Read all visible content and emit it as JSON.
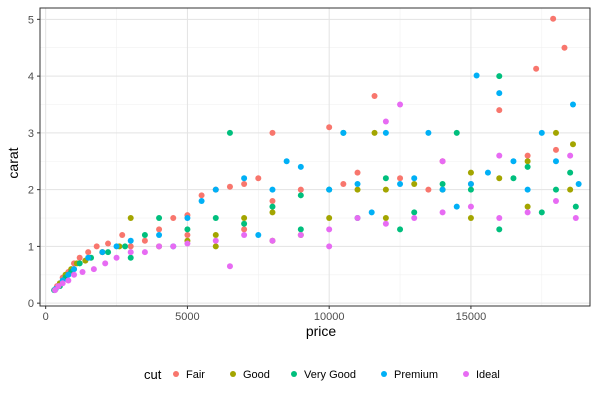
{
  "chart_data": {
    "type": "scatter",
    "title": "",
    "xlabel": "price",
    "ylabel": "carat",
    "xlim": [
      -200,
      19200
    ],
    "ylim": [
      -0.05,
      5.2
    ],
    "x_ticks": [
      0,
      5000,
      10000,
      15000
    ],
    "x_tick_labels": [
      "0",
      "5000",
      "10000",
      "15000"
    ],
    "y_ticks": [
      0,
      1,
      2,
      3,
      4,
      5
    ],
    "y_tick_labels": [
      "0",
      "1",
      "2",
      "3",
      "4",
      "5"
    ],
    "grid": true,
    "legend": {
      "title": "cut",
      "position": "bottom"
    },
    "series": [
      {
        "name": "Fair",
        "color": "#F8766D",
        "points": [
          [
            400,
            0.3
          ],
          [
            600,
            0.45
          ],
          [
            800,
            0.55
          ],
          [
            1000,
            0.7
          ],
          [
            1200,
            0.8
          ],
          [
            1500,
            0.9
          ],
          [
            1800,
            1.0
          ],
          [
            2200,
            1.05
          ],
          [
            2700,
            1.2
          ],
          [
            3000,
            1.0
          ],
          [
            3500,
            1.1
          ],
          [
            4000,
            1.3
          ],
          [
            4500,
            1.5
          ],
          [
            5000,
            1.55
          ],
          [
            5500,
            1.9
          ],
          [
            6000,
            2.0
          ],
          [
            6500,
            2.05
          ],
          [
            7000,
            2.1
          ],
          [
            7500,
            2.2
          ],
          [
            8000,
            1.8
          ],
          [
            8000,
            3.0
          ],
          [
            9000,
            2.0
          ],
          [
            10000,
            3.1
          ],
          [
            10500,
            2.1
          ],
          [
            11000,
            2.3
          ],
          [
            11600,
            3.65
          ],
          [
            12500,
            2.2
          ],
          [
            13500,
            2.0
          ],
          [
            14000,
            2.5
          ],
          [
            15000,
            2.1
          ],
          [
            16000,
            3.4
          ],
          [
            17000,
            2.6
          ],
          [
            17300,
            4.13
          ],
          [
            17900,
            5.01
          ],
          [
            18300,
            4.5
          ],
          [
            18000,
            2.7
          ],
          [
            1000,
            0.6
          ],
          [
            2000,
            0.9
          ],
          [
            5000,
            1.2
          ],
          [
            7000,
            1.3
          ]
        ]
      },
      {
        "name": "Good",
        "color": "#A3A500",
        "points": [
          [
            350,
            0.25
          ],
          [
            500,
            0.35
          ],
          [
            700,
            0.5
          ],
          [
            900,
            0.6
          ],
          [
            1100,
            0.7
          ],
          [
            1400,
            0.75
          ],
          [
            2000,
            0.9
          ],
          [
            2600,
            1.0
          ],
          [
            3000,
            1.5
          ],
          [
            4000,
            1.0
          ],
          [
            5000,
            1.1
          ],
          [
            6000,
            1.2
          ],
          [
            7000,
            1.5
          ],
          [
            8000,
            1.6
          ],
          [
            9000,
            1.2
          ],
          [
            10000,
            1.5
          ],
          [
            11000,
            2.0
          ],
          [
            11600,
            3.0
          ],
          [
            12000,
            2.0
          ],
          [
            13000,
            2.1
          ],
          [
            14000,
            2.0
          ],
          [
            15000,
            2.3
          ],
          [
            16000,
            2.2
          ],
          [
            17000,
            2.5
          ],
          [
            18000,
            3.0
          ],
          [
            18600,
            2.8
          ],
          [
            18500,
            2.0
          ],
          [
            6000,
            1.0
          ],
          [
            8000,
            1.1
          ],
          [
            12000,
            1.5
          ],
          [
            15000,
            1.5
          ],
          [
            17000,
            1.7
          ]
        ]
      },
      {
        "name": "Very Good",
        "color": "#00BF7D",
        "points": [
          [
            300,
            0.23
          ],
          [
            500,
            0.3
          ],
          [
            700,
            0.45
          ],
          [
            900,
            0.55
          ],
          [
            1200,
            0.7
          ],
          [
            1600,
            0.8
          ],
          [
            2200,
            0.9
          ],
          [
            2800,
            1.0
          ],
          [
            3500,
            1.2
          ],
          [
            4000,
            1.5
          ],
          [
            5000,
            1.3
          ],
          [
            6000,
            1.5
          ],
          [
            6500,
            3.0
          ],
          [
            7000,
            1.4
          ],
          [
            8000,
            1.7
          ],
          [
            9000,
            1.9
          ],
          [
            10000,
            2.0
          ],
          [
            10500,
            3.0
          ],
          [
            11000,
            1.5
          ],
          [
            12000,
            2.2
          ],
          [
            13000,
            1.6
          ],
          [
            14000,
            2.1
          ],
          [
            14500,
            3.0
          ],
          [
            15000,
            2.0
          ],
          [
            16000,
            4.0
          ],
          [
            16500,
            2.2
          ],
          [
            17000,
            2.4
          ],
          [
            17500,
            1.6
          ],
          [
            18000,
            2.0
          ],
          [
            18500,
            2.3
          ],
          [
            18700,
            1.7
          ],
          [
            3000,
            0.8
          ],
          [
            9000,
            1.3
          ],
          [
            12500,
            1.3
          ],
          [
            16000,
            1.3
          ]
        ]
      },
      {
        "name": "Premium",
        "color": "#00B0F6",
        "points": [
          [
            350,
            0.25
          ],
          [
            600,
            0.4
          ],
          [
            800,
            0.5
          ],
          [
            1000,
            0.6
          ],
          [
            1500,
            0.8
          ],
          [
            2000,
            0.9
          ],
          [
            2500,
            1.0
          ],
          [
            3000,
            1.1
          ],
          [
            4000,
            1.2
          ],
          [
            5000,
            1.5
          ],
          [
            5500,
            1.8
          ],
          [
            6000,
            2.0
          ],
          [
            7000,
            2.2
          ],
          [
            8000,
            2.0
          ],
          [
            8500,
            2.5
          ],
          [
            9000,
            2.4
          ],
          [
            10000,
            2.0
          ],
          [
            10500,
            3.0
          ],
          [
            11000,
            2.1
          ],
          [
            12000,
            3.0
          ],
          [
            12500,
            2.1
          ],
          [
            13000,
            2.2
          ],
          [
            13500,
            3.0
          ],
          [
            14000,
            2.0
          ],
          [
            15000,
            2.1
          ],
          [
            15200,
            4.01
          ],
          [
            15600,
            2.3
          ],
          [
            16000,
            3.7
          ],
          [
            16500,
            2.5
          ],
          [
            17000,
            2.0
          ],
          [
            17500,
            3.0
          ],
          [
            18000,
            2.5
          ],
          [
            18600,
            3.5
          ],
          [
            18800,
            2.1
          ],
          [
            4500,
            1.0
          ],
          [
            7500,
            1.2
          ],
          [
            11500,
            1.6
          ],
          [
            14500,
            1.7
          ]
        ]
      },
      {
        "name": "Ideal",
        "color": "#E76BF3",
        "points": [
          [
            330,
            0.23
          ],
          [
            450,
            0.3
          ],
          [
            600,
            0.35
          ],
          [
            800,
            0.4
          ],
          [
            1000,
            0.5
          ],
          [
            1300,
            0.55
          ],
          [
            1700,
            0.6
          ],
          [
            2100,
            0.7
          ],
          [
            2500,
            0.8
          ],
          [
            3000,
            0.9
          ],
          [
            3500,
            0.9
          ],
          [
            4000,
            1.0
          ],
          [
            4500,
            1.0
          ],
          [
            5000,
            1.05
          ],
          [
            6000,
            1.1
          ],
          [
            6500,
            0.65
          ],
          [
            7000,
            1.2
          ],
          [
            8000,
            1.1
          ],
          [
            9000,
            1.2
          ],
          [
            10000,
            1.3
          ],
          [
            11000,
            1.5
          ],
          [
            12000,
            1.4
          ],
          [
            12500,
            3.5
          ],
          [
            13000,
            1.5
          ],
          [
            14000,
            1.6
          ],
          [
            15000,
            1.7
          ],
          [
            16000,
            1.5
          ],
          [
            17000,
            1.6
          ],
          [
            18000,
            1.8
          ],
          [
            18700,
            1.5
          ],
          [
            10000,
            1.0
          ],
          [
            12000,
            3.2
          ],
          [
            14000,
            2.5
          ],
          [
            16000,
            2.6
          ],
          [
            18500,
            2.6
          ]
        ]
      }
    ]
  }
}
